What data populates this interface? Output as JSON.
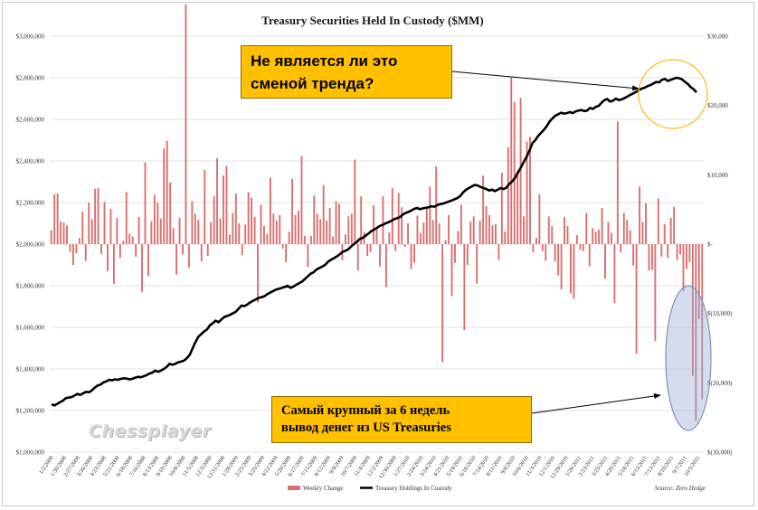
{
  "chart_data": {
    "type": "bar+line",
    "title": "Treasury Securities Held In Custody ($MM)",
    "source": "Source: Zero Hedge",
    "watermark": "Chessplayer",
    "left_axis": {
      "ylim": [
        1000000,
        3000000
      ],
      "tick_values": [
        1000000,
        1200000,
        1400000,
        1600000,
        1800000,
        2000000,
        2200000,
        2400000,
        2600000,
        2800000,
        3000000
      ],
      "tick_labels": [
        "$1,000,000",
        "$1,200,000",
        "$1,400,000",
        "$1,600,000",
        "$1,800,000",
        "$2,000,000",
        "$2,200,000",
        "$2,400,000",
        "$2,600,000",
        "$2,800,000",
        "$3,000,000"
      ]
    },
    "right_axis": {
      "ylim": [
        -30000,
        30000
      ],
      "tick_values": [
        -30000,
        -20000,
        -10000,
        0,
        10000,
        20000,
        30000
      ],
      "tick_labels": [
        "$(30,000)",
        "$(20,000)",
        "$(10,000)",
        "$-",
        "$10,000",
        "$20,000",
        "$30,000"
      ]
    },
    "x_tick_labels": [
      "1/2/2008",
      "1/30/2008",
      "2/27/2008",
      "3/26/2008",
      "4/23/2008",
      "5/21/2008",
      "6/18/2008",
      "7/16/2008",
      "8/13/2008",
      "9/10/2008",
      "10/8/2008",
      "11/5/2008",
      "12/3/2008",
      "12/31/2008",
      "1/28/2009",
      "2/25/2009",
      "3/25/2009",
      "4/22/2009",
      "5/20/2009",
      "6/17/2009",
      "7/15/2009",
      "8/12/2009",
      "9/9/2009",
      "10/7/2009",
      "11/4/2009",
      "12/2/2009",
      "12/30/2009",
      "1/27/2010",
      "2/24/2010",
      "3/24/2010",
      "4/21/2010",
      "5/19/2010",
      "6/16/2010",
      "7/14/2010",
      "8/11/2010",
      "9/8/2010",
      "10/6/2010",
      "11/3/2010",
      "12/1/2010",
      "12/29/2010",
      "1/26/2011",
      "2/23/2011",
      "3/23/2011",
      "4/20/2011",
      "5/18/2011",
      "6/15/2011",
      "7/13/2011",
      "8/10/2011",
      "9/7/2011",
      "10/5/2011"
    ],
    "series": [
      {
        "name": "Weekly Change",
        "type": "bar",
        "axis": "right",
        "color": "#d9706e",
        "values": [
          2000,
          7200,
          7300,
          3300,
          3100,
          2700,
          -1100,
          -3000,
          -1300,
          900,
          4700,
          -2400,
          6000,
          3600,
          8000,
          8100,
          -1400,
          6100,
          -3900,
          5100,
          -5700,
          3800,
          -2000,
          500,
          7500,
          1500,
          1100,
          -1800,
          3900,
          -6900,
          11800,
          -4600,
          3300,
          7100,
          6000,
          3700,
          13800,
          14900,
          8900,
          2300,
          -4400,
          3800,
          -1500,
          34600,
          -3400,
          6200,
          4400,
          3500,
          -2500,
          10700,
          -1700,
          3200,
          6900,
          12400,
          3700,
          9900,
          11300,
          1400,
          4500,
          7300,
          3000,
          -1600,
          2800,
          7500,
          6700,
          3900,
          -8400,
          5700,
          2600,
          1500,
          9600,
          4400,
          3400,
          4200,
          -600,
          -2600,
          1800,
          9400,
          4200,
          4800,
          12700,
          1200,
          -3300,
          1200,
          7000,
          4400,
          3600,
          8500,
          3400,
          5200,
          1100,
          6200,
          5800,
          -2300,
          1400,
          4000,
          4400,
          12200,
          -3800,
          6900,
          1700,
          -1700,
          -1200,
          5600,
          2100,
          -3200,
          6900,
          -6200,
          1700,
          8100,
          -1000,
          7400,
          5300,
          -400,
          3000,
          -3600,
          -2700,
          4100,
          1600,
          3100,
          5400,
          8300,
          3500,
          11200,
          3000,
          -17000,
          600,
          4200,
          -7500,
          -2700,
          1900,
          5700,
          -12400,
          -3000,
          3300,
          4000,
          -5700,
          3400,
          9900,
          5500,
          4200,
          2700,
          2900,
          -2300,
          10300,
          1800,
          14000,
          24000,
          20500,
          10600,
          21100,
          4000,
          14800,
          15500,
          -1200,
          900,
          7200,
          -1000,
          -2400,
          4000,
          2600,
          -2500,
          -4500,
          -6500,
          3900,
          2600,
          -7100,
          -7900,
          1300,
          -800,
          -1000,
          4500,
          -3200,
          2300,
          1800,
          2100,
          5200,
          -5000,
          3200,
          1600,
          -8500,
          17700,
          -1200,
          4500,
          3500,
          2000,
          -3100,
          -15800,
          8300,
          3200,
          5900,
          -3800,
          -3700,
          -14000,
          6600,
          -1800,
          2900,
          -2000,
          3800,
          5400,
          -2300,
          -1500,
          -6800,
          -3600,
          -2600,
          -19000,
          -25500,
          -10800,
          -22400
        ]
      },
      {
        "name": "Treasury Holdings In Custody",
        "type": "line",
        "axis": "left",
        "color": "#000000",
        "values": [
          1230000,
          1225000,
          1232000,
          1240000,
          1248000,
          1260000,
          1262000,
          1265000,
          1272000,
          1280000,
          1275000,
          1283000,
          1290000,
          1288000,
          1297000,
          1310000,
          1320000,
          1325000,
          1335000,
          1340000,
          1348000,
          1345000,
          1350000,
          1348000,
          1352000,
          1355000,
          1354000,
          1350000,
          1352000,
          1358000,
          1362000,
          1360000,
          1365000,
          1370000,
          1378000,
          1382000,
          1392000,
          1386000,
          1392000,
          1400000,
          1410000,
          1425000,
          1420000,
          1425000,
          1432000,
          1435000,
          1440000,
          1452000,
          1468000,
          1500000,
          1530000,
          1555000,
          1568000,
          1580000,
          1590000,
          1610000,
          1620000,
          1632000,
          1625000,
          1638000,
          1650000,
          1655000,
          1660000,
          1668000,
          1675000,
          1690000,
          1705000,
          1702000,
          1710000,
          1720000,
          1728000,
          1735000,
          1742000,
          1745000,
          1750000,
          1760000,
          1768000,
          1775000,
          1782000,
          1785000,
          1790000,
          1794000,
          1800000,
          1790000,
          1796000,
          1805000,
          1812000,
          1820000,
          1832000,
          1845000,
          1858000,
          1865000,
          1878000,
          1885000,
          1892000,
          1900000,
          1915000,
          1925000,
          1932000,
          1940000,
          1950000,
          1962000,
          1968000,
          1975000,
          1988000,
          2000000,
          2010000,
          2025000,
          2030000,
          2040000,
          2050000,
          2062000,
          2070000,
          2078000,
          2088000,
          2092000,
          2100000,
          2105000,
          2112000,
          2120000,
          2125000,
          2130000,
          2142000,
          2150000,
          2155000,
          2162000,
          2170000,
          2174000,
          2168000,
          2172000,
          2175000,
          2178000,
          2182000,
          2180000,
          2188000,
          2192000,
          2195000,
          2200000,
          2205000,
          2210000,
          2216000,
          2222000,
          2232000,
          2250000,
          2262000,
          2270000,
          2278000,
          2285000,
          2282000,
          2275000,
          2270000,
          2265000,
          2258000,
          2262000,
          2255000,
          2262000,
          2270000,
          2265000,
          2272000,
          2290000,
          2302000,
          2320000,
          2345000,
          2368000,
          2395000,
          2420000,
          2450000,
          2485000,
          2500000,
          2520000,
          2535000,
          2550000,
          2568000,
          2590000,
          2605000,
          2618000,
          2625000,
          2632000,
          2628000,
          2630000,
          2635000,
          2630000,
          2638000,
          2642000,
          2645000,
          2640000,
          2642000,
          2655000,
          2650000,
          2660000,
          2665000,
          2680000,
          2692000,
          2698000,
          2685000,
          2690000,
          2700000,
          2692000,
          2696000,
          2702000,
          2710000,
          2718000,
          2725000,
          2732000,
          2740000,
          2748000,
          2752000,
          2760000,
          2765000,
          2772000,
          2780000,
          2778000,
          2790000,
          2795000,
          2785000,
          2790000,
          2795000,
          2800000,
          2798000,
          2792000,
          2780000,
          2770000,
          2755000,
          2745000,
          2730000
        ]
      }
    ],
    "legend": [
      {
        "label": "Weekly Change",
        "color": "#d9706e"
      },
      {
        "label": "Treasury Holdings In Custody",
        "color": "#000000"
      }
    ]
  },
  "annotations": {
    "top_callout": [
      "Не является ли это",
      "сменой тренда?"
    ],
    "bottom_callout": [
      "Самый крупный за 6 недель",
      "вывод денег из US Treasuries"
    ]
  },
  "colors": {
    "bar": "#d9706e",
    "line": "#000000",
    "callout": "#ffc000",
    "highlight_circle": "#f5c542",
    "highlight_ellipse": "#9fb1d6"
  }
}
